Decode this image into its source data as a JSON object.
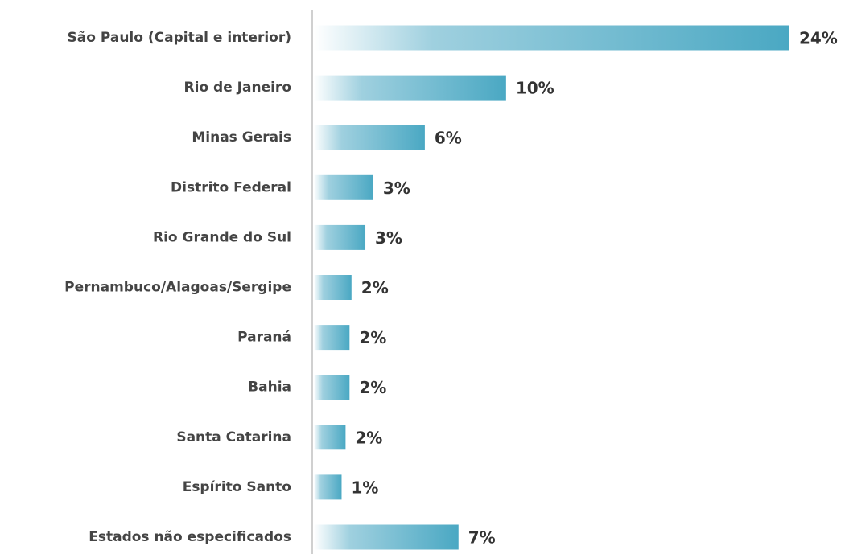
{
  "chart_data": {
    "type": "bar",
    "orientation": "horizontal",
    "categories": [
      "São Paulo (Capital e interior)",
      "Rio de Janeiro",
      "Minas Gerais",
      "Distrito Federal",
      "Rio Grande do Sul",
      "Pernambuco/Alagoas/Sergipe",
      "Paraná",
      "Bahia",
      "Santa Catarina",
      "Espírito Santo",
      "Estados não especificados"
    ],
    "values": [
      24,
      9.7,
      5.6,
      3.0,
      2.6,
      1.9,
      1.8,
      1.8,
      1.6,
      1.4,
      7.3
    ],
    "value_labels": [
      "24%",
      "10%",
      "6%",
      "3%",
      "3%",
      "2%",
      "2%",
      "2%",
      "2%",
      "1%",
      "7%"
    ],
    "color": "#4aa8c3",
    "xlim": [
      0,
      25
    ]
  }
}
